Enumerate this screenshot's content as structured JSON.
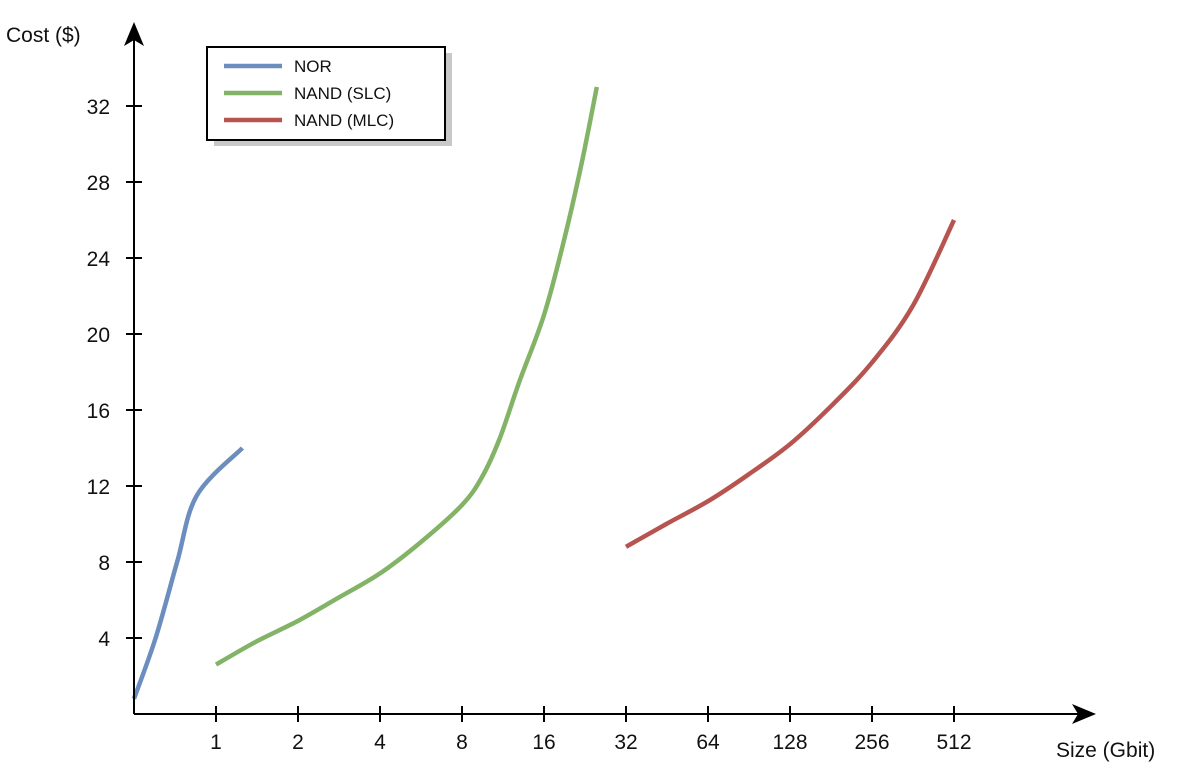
{
  "chart_data": {
    "type": "line",
    "title": "",
    "xlabel": "Size (Gbit)",
    "ylabel": "Cost ($)",
    "x_scale": "log2",
    "x_ticks": [
      "1",
      "2",
      "4",
      "8",
      "16",
      "32",
      "64",
      "128",
      "256",
      "512"
    ],
    "y_ticks": [
      "4",
      "8",
      "12",
      "16",
      "20",
      "24",
      "28",
      "32"
    ],
    "ylim": [
      0,
      36
    ],
    "grid": false,
    "legend_position": "top-left",
    "series": [
      {
        "name": "NOR",
        "color": "#6c8ebf",
        "points": [
          [
            0.5,
            0.8
          ],
          [
            0.6,
            4
          ],
          [
            0.72,
            8
          ],
          [
            0.85,
            11.5
          ],
          [
            1.25,
            14
          ]
        ]
      },
      {
        "name": "NAND (SLC)",
        "color": "#82b366",
        "points": [
          [
            1,
            2.6
          ],
          [
            1.4,
            3.8
          ],
          [
            2,
            4.9
          ],
          [
            2.8,
            6.1
          ],
          [
            4,
            7.4
          ],
          [
            5.6,
            9.0
          ],
          [
            8,
            11.0
          ],
          [
            9.5,
            12.5
          ],
          [
            11,
            14.5
          ],
          [
            13,
            17.5
          ],
          [
            16,
            21.0
          ],
          [
            19,
            25.0
          ],
          [
            22,
            29.0
          ],
          [
            25,
            33.0
          ]
        ]
      },
      {
        "name": "NAND (MLC)",
        "color": "#b85450",
        "points": [
          [
            32,
            8.8
          ],
          [
            45,
            10.0
          ],
          [
            64,
            11.2
          ],
          [
            90,
            12.6
          ],
          [
            128,
            14.2
          ],
          [
            181,
            16.2
          ],
          [
            256,
            18.5
          ],
          [
            362,
            21.5
          ],
          [
            512,
            26.0
          ]
        ]
      }
    ]
  }
}
